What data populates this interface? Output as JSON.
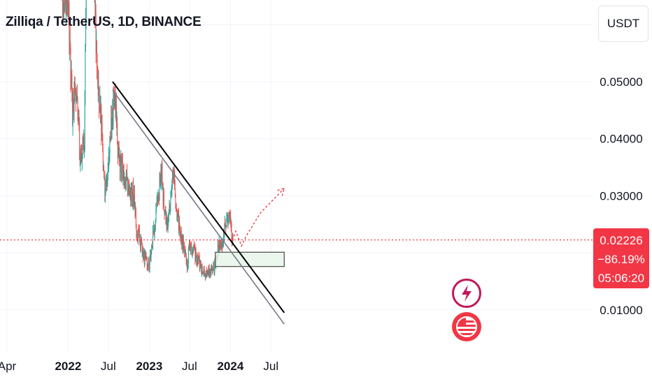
{
  "header": {
    "title": "Zilliqa / TetherUS, 1D, BINANCE"
  },
  "price_scale": {
    "unit_label": "USDT"
  },
  "last_price": {
    "price": "0.02226",
    "change": "−86.19%",
    "countdown": "05:06:20"
  },
  "colors": {
    "up": "#26a69a",
    "down": "#ef5350",
    "price_line": "#f23645",
    "trend_main": "#000000",
    "trend_lower": "#787b86",
    "zone_fill": "#e8f5e9",
    "projection": "#f23645",
    "grid": "#f0f3fa"
  },
  "events": [
    {
      "icon": "lightning-icon"
    },
    {
      "icon": "us-flag-icon"
    }
  ],
  "chart_data": {
    "type": "candlestick",
    "title": "Zilliqa / TetherUS, 1D, BINANCE",
    "x_ticks": [
      "Apr",
      "2022",
      "Jul",
      "2023",
      "Jul",
      "2024",
      "Jul"
    ],
    "y_ticks": [
      "0.05000",
      "0.04000",
      "0.03000",
      "0.01000"
    ],
    "ylim": [
      0.004,
      0.066
    ],
    "grid": true,
    "last_price": 0.02226,
    "price_path": [
      {
        "date": "2021-04-01",
        "price": 0.15
      },
      {
        "date": "2021-05-01",
        "price": 0.14
      },
      {
        "date": "2021-06-01",
        "price": 0.09
      },
      {
        "date": "2021-08-01",
        "price": 0.085
      },
      {
        "date": "2021-09-01",
        "price": 0.11
      },
      {
        "date": "2021-10-01",
        "price": 0.08
      },
      {
        "date": "2021-11-01",
        "price": 0.085
      },
      {
        "date": "2021-12-10",
        "price": 0.065
      },
      {
        "date": "2022-01-01",
        "price": 0.062
      },
      {
        "date": "2022-01-20",
        "price": 0.045
      },
      {
        "date": "2022-02-10",
        "price": 0.048
      },
      {
        "date": "2022-02-25",
        "price": 0.036
      },
      {
        "date": "2022-03-15",
        "price": 0.04
      },
      {
        "date": "2022-03-28",
        "price": 0.09
      },
      {
        "date": "2022-04-10",
        "price": 0.15
      },
      {
        "date": "2022-04-25",
        "price": 0.075
      },
      {
        "date": "2022-05-10",
        "price": 0.052
      },
      {
        "date": "2022-05-25",
        "price": 0.046
      },
      {
        "date": "2022-06-10",
        "price": 0.034
      },
      {
        "date": "2022-06-20",
        "price": 0.03
      },
      {
        "date": "2022-07-05",
        "price": 0.038
      },
      {
        "date": "2022-07-20",
        "price": 0.044
      },
      {
        "date": "2022-07-31",
        "price": 0.049
      },
      {
        "date": "2022-08-12",
        "price": 0.038
      },
      {
        "date": "2022-08-25",
        "price": 0.035
      },
      {
        "date": "2022-09-15",
        "price": 0.033
      },
      {
        "date": "2022-10-05",
        "price": 0.031
      },
      {
        "date": "2022-10-25",
        "price": 0.03
      },
      {
        "date": "2022-11-05",
        "price": 0.024
      },
      {
        "date": "2022-11-20",
        "price": 0.022
      },
      {
        "date": "2022-12-10",
        "price": 0.019
      },
      {
        "date": "2022-12-30",
        "price": 0.0175
      },
      {
        "date": "2023-01-15",
        "price": 0.022
      },
      {
        "date": "2023-01-28",
        "price": 0.026
      },
      {
        "date": "2023-02-10",
        "price": 0.03
      },
      {
        "date": "2023-02-25",
        "price": 0.034
      },
      {
        "date": "2023-03-10",
        "price": 0.028
      },
      {
        "date": "2023-03-25",
        "price": 0.024
      },
      {
        "date": "2023-04-05",
        "price": 0.03
      },
      {
        "date": "2023-04-18",
        "price": 0.035
      },
      {
        "date": "2023-05-01",
        "price": 0.028
      },
      {
        "date": "2023-05-20",
        "price": 0.024
      },
      {
        "date": "2023-06-10",
        "price": 0.02
      },
      {
        "date": "2023-06-20",
        "price": 0.0175
      },
      {
        "date": "2023-07-01",
        "price": 0.021
      },
      {
        "date": "2023-07-20",
        "price": 0.02
      },
      {
        "date": "2023-08-15",
        "price": 0.018
      },
      {
        "date": "2023-09-01",
        "price": 0.0165
      },
      {
        "date": "2023-09-30",
        "price": 0.0168
      },
      {
        "date": "2023-10-20",
        "price": 0.0172
      },
      {
        "date": "2023-11-05",
        "price": 0.0205
      },
      {
        "date": "2023-11-25",
        "price": 0.022
      },
      {
        "date": "2023-12-10",
        "price": 0.025
      },
      {
        "date": "2023-12-28",
        "price": 0.027
      },
      {
        "date": "2024-01-05",
        "price": 0.023
      },
      {
        "date": "2024-01-12",
        "price": 0.0222
      }
    ],
    "trendlines": [
      {
        "from": {
          "date": "2022-07-20",
          "price": 0.05
        },
        "to": {
          "date": "2024-08-30",
          "price": 0.0095
        },
        "color": "#000000"
      },
      {
        "from": {
          "date": "2022-07-20",
          "price": 0.0485
        },
        "to": {
          "date": "2024-08-30",
          "price": 0.0075
        },
        "color": "#787b86"
      }
    ],
    "zones": [
      {
        "from": "2023-10-25",
        "to": "2024-08-30",
        "low": 0.0176,
        "high": 0.0201
      }
    ],
    "projection": [
      {
        "date": "2024-01-10",
        "price": 0.0222
      },
      {
        "date": "2024-01-25",
        "price": 0.0238
      },
      {
        "date": "2024-02-20",
        "price": 0.0212
      },
      {
        "date": "2024-03-10",
        "price": 0.0228
      },
      {
        "date": "2024-05-15",
        "price": 0.027
      },
      {
        "date": "2024-08-30",
        "price": 0.0313
      }
    ]
  }
}
